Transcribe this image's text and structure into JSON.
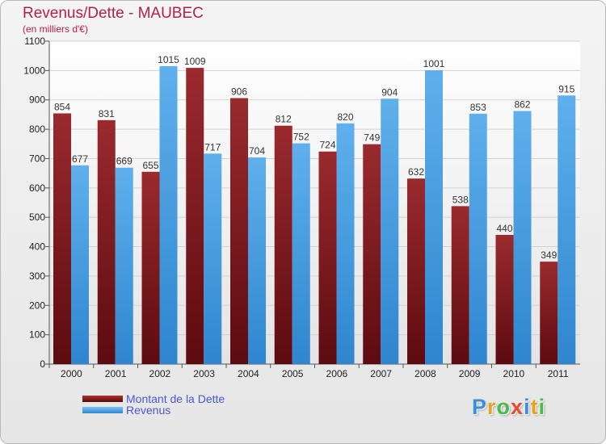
{
  "chart_data": {
    "type": "bar",
    "title": "Revenus/Dette - MAUBEC",
    "subtitle": "(en milliers d'€)",
    "categories": [
      "2000",
      "2001",
      "2002",
      "2003",
      "2004",
      "2005",
      "2006",
      "2007",
      "2008",
      "2009",
      "2010",
      "2011"
    ],
    "series": [
      {
        "name": "Montant de la Dette",
        "color": "#8b1a1f",
        "values": [
          854,
          831,
          655,
          1009,
          906,
          812,
          724,
          749,
          632,
          538,
          440,
          349
        ]
      },
      {
        "name": "Revenus",
        "color": "#4ba3e6",
        "values": [
          677,
          669,
          1015,
          717,
          704,
          752,
          820,
          904,
          1001,
          853,
          862,
          915
        ]
      }
    ],
    "ylim": [
      0,
      1100
    ],
    "yticks": [
      0,
      100,
      200,
      300,
      400,
      500,
      600,
      700,
      800,
      900,
      1000,
      1100
    ],
    "grid": true,
    "legend_position": "bottom-left"
  },
  "logo": {
    "letters": [
      "P",
      "r",
      "o",
      "x",
      "i",
      "t",
      "i"
    ],
    "colors": [
      "#3a8fd8",
      "#e8a21a",
      "#4bb84b",
      "#e84a2a",
      "#3a8fd8",
      "#e8a21a",
      "#4bb84b"
    ]
  }
}
